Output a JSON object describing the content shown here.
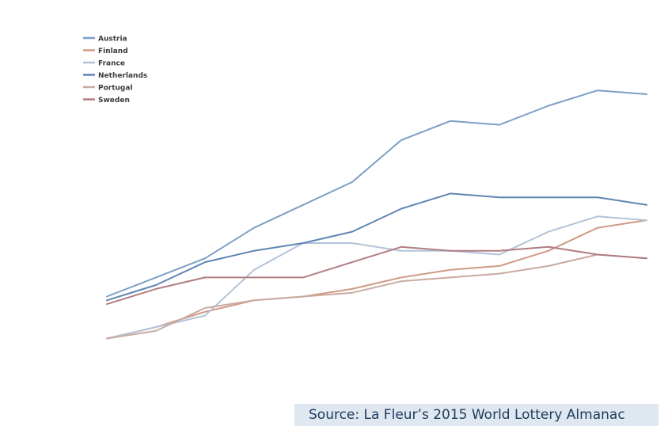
{
  "corner_text": "",
  "source_note": "Source: La Fleur’s 2015 World Lottery Almanac",
  "chart_data": {
    "type": "line",
    "title": "",
    "xlabel": "",
    "ylabel": "",
    "x": [
      "",
      "",
      "",
      "",
      "",
      "",
      "",
      "",
      "",
      "",
      "",
      "",
      ""
    ],
    "y_ticks": [
      "",
      "",
      "",
      "",
      "",
      "",
      "",
      "",
      "",
      "",
      ""
    ],
    "ylim": [
      0,
      10
    ],
    "grid": false,
    "legend_position": "top-left",
    "colors": {
      "Austria": "#7c9fc6",
      "Finland": "#d09a86",
      "France": "#b3c3d8",
      "Netherlands": "#5f85b5",
      "Portugal": "#c9aba0",
      "Sweden": "#b07d82"
    },
    "series": [
      {
        "name": "Austria",
        "values": [
          null,
          2.5,
          3.0,
          3.5,
          4.3,
          4.9,
          5.5,
          6.6,
          7.1,
          7.0,
          7.5,
          7.9,
          7.8
        ]
      },
      {
        "name": "Finland",
        "values": [
          null,
          1.4,
          1.7,
          2.1,
          2.4,
          2.5,
          2.7,
          3.0,
          3.2,
          3.3,
          3.7,
          4.3,
          4.5
        ]
      },
      {
        "name": "France",
        "values": [
          null,
          1.4,
          1.7,
          2.0,
          3.2,
          3.9,
          3.9,
          3.7,
          3.7,
          3.6,
          4.2,
          4.6,
          4.5
        ]
      },
      {
        "name": "Netherlands",
        "values": [
          null,
          2.4,
          2.8,
          3.4,
          3.7,
          3.9,
          4.2,
          4.8,
          5.2,
          5.1,
          5.1,
          5.1,
          4.9
        ]
      },
      {
        "name": "Portugal",
        "values": [
          null,
          1.4,
          1.6,
          2.2,
          2.4,
          2.5,
          2.6,
          2.9,
          3.0,
          3.1,
          3.3,
          3.6,
          3.5
        ]
      },
      {
        "name": "Sweden",
        "values": [
          null,
          2.3,
          2.7,
          3.0,
          3.0,
          3.0,
          3.4,
          3.8,
          3.7,
          3.7,
          3.8,
          3.6,
          3.5
        ]
      }
    ]
  }
}
